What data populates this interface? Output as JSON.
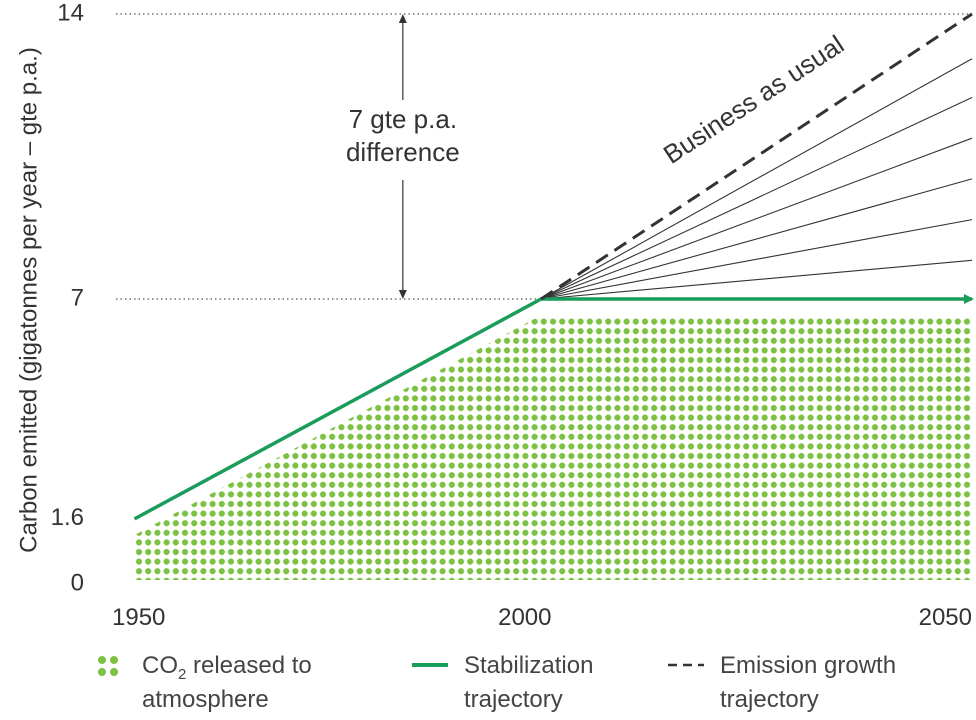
{
  "chart_data": {
    "type": "line",
    "ylabel": "Carbon emitted (gigatonnes per year – gte p.a.)",
    "xlabel": "",
    "x_ticks": [
      "1950",
      "2000",
      "2050"
    ],
    "y_ticks": [
      "0",
      "1.6",
      "7",
      "14"
    ],
    "xlim": [
      1948,
      2055
    ],
    "ylim": [
      0,
      14
    ],
    "grid": false,
    "series": [
      {
        "name": "Stabilization trajectory",
        "style": "solid",
        "color": "#1a9c5a",
        "x": [
          1952,
          2002,
          2055
        ],
        "y": [
          1.6,
          7,
          7
        ]
      },
      {
        "name": "Emission growth trajectory",
        "style": "dashed",
        "color": "#333333",
        "x": [
          2002,
          2055
        ],
        "y": [
          7,
          14
        ]
      }
    ],
    "fan_lines": {
      "color": "#333333",
      "start": [
        2002,
        7
      ],
      "end_x": 2055,
      "end_y": [
        7.95,
        8.95,
        9.95,
        10.95,
        11.95,
        12.9
      ]
    },
    "area": {
      "name": "CO2 released to atmosphere",
      "color": "#7dc142",
      "x": [
        1952,
        2002,
        2055
      ],
      "y": [
        1.2,
        6.6,
        6.6
      ]
    },
    "reference_lines": [
      7,
      14
    ],
    "annotations": [
      {
        "text_lines": [
          "7 gte p.a.",
          "difference"
        ],
        "x": 1985,
        "from_y": 7,
        "to_y": 14
      },
      {
        "text": "Business as usual",
        "x": 2018,
        "y": 10.3
      }
    ],
    "legend": {
      "placement": "bottom",
      "items": [
        {
          "kind": "dots",
          "label_lines": [
            "CO₂ released to",
            "atmosphere"
          ],
          "color": "#7dc142"
        },
        {
          "kind": "solid",
          "label_lines": [
            "Stabilization",
            "trajectory"
          ],
          "color": "#1a9c5a"
        },
        {
          "kind": "dashed",
          "label_lines": [
            "Emission growth",
            "trajectory"
          ],
          "color": "#333333"
        }
      ]
    }
  }
}
